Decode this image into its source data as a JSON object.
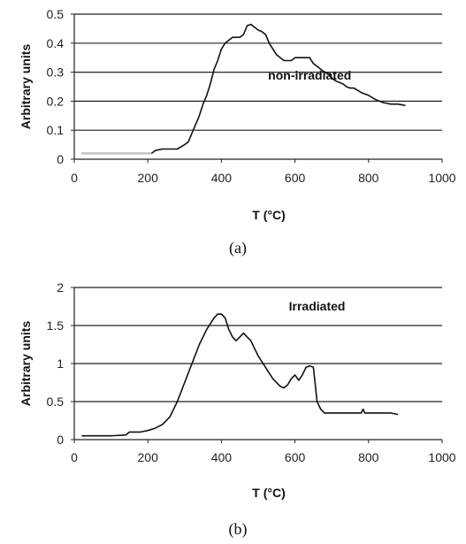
{
  "chart_data": [
    {
      "type": "line",
      "caption": "(a)",
      "xlabel": "T (°C)",
      "ylabel": "Arbitrary units",
      "xlim": [
        0,
        1000
      ],
      "ylim": [
        0,
        0.5
      ],
      "xticks": [
        0,
        200,
        400,
        600,
        800,
        1000
      ],
      "yticks": [
        0,
        0.1,
        0.2,
        0.3,
        0.4,
        0.5
      ],
      "ytick_labels": [
        "0",
        "0.1",
        "0.2",
        "0.3",
        "0.4",
        "0.5"
      ],
      "grid": "horizontal",
      "annotations": [
        {
          "text": "non-irradiated",
          "x": 640,
          "y": 0.275
        }
      ],
      "series": [
        {
          "color": "#111111",
          "x": [
            20,
            60,
            100,
            140,
            180,
            210,
            220,
            240,
            260,
            280,
            300,
            310,
            320,
            330,
            340,
            350,
            360,
            370,
            380,
            390,
            400,
            410,
            420,
            430,
            440,
            450,
            460,
            470,
            480,
            490,
            500,
            510,
            520,
            530,
            540,
            550,
            560,
            570,
            580,
            590,
            600,
            610,
            620,
            630,
            640,
            650,
            660,
            670,
            680,
            690,
            700,
            710,
            720,
            730,
            740,
            750,
            760,
            780,
            800,
            820,
            840,
            860,
            880,
            900
          ],
          "y": [
            0.02,
            0.02,
            0.02,
            0.02,
            0.02,
            0.02,
            0.03,
            0.035,
            0.035,
            0.035,
            0.05,
            0.06,
            0.09,
            0.12,
            0.15,
            0.19,
            0.22,
            0.26,
            0.31,
            0.34,
            0.38,
            0.4,
            0.41,
            0.42,
            0.42,
            0.42,
            0.43,
            0.46,
            0.465,
            0.455,
            0.445,
            0.44,
            0.43,
            0.4,
            0.38,
            0.36,
            0.35,
            0.34,
            0.34,
            0.34,
            0.35,
            0.35,
            0.35,
            0.35,
            0.35,
            0.33,
            0.32,
            0.31,
            0.3,
            0.295,
            0.28,
            0.27,
            0.265,
            0.26,
            0.25,
            0.245,
            0.245,
            0.23,
            0.22,
            0.205,
            0.195,
            0.19,
            0.19,
            0.185
          ]
        }
      ]
    },
    {
      "type": "line",
      "caption": "(b)",
      "xlabel": "T (°C)",
      "ylabel": "Arbitrary units",
      "xlim": [
        0,
        1000
      ],
      "ylim": [
        0,
        2
      ],
      "xticks": [
        0,
        200,
        400,
        600,
        800,
        1000
      ],
      "yticks": [
        0,
        0.5,
        1,
        1.5,
        2
      ],
      "ytick_labels": [
        "0",
        "0.5",
        "1",
        "1.5",
        "2"
      ],
      "grid": "horizontal",
      "annotations": [
        {
          "text": "Irradiated",
          "x": 660,
          "y": 1.7
        }
      ],
      "series": [
        {
          "color": "#111111",
          "x": [
            20,
            60,
            100,
            140,
            150,
            180,
            200,
            220,
            240,
            260,
            280,
            300,
            320,
            340,
            360,
            380,
            390,
            400,
            410,
            420,
            430,
            440,
            450,
            460,
            470,
            480,
            490,
            500,
            520,
            540,
            560,
            570,
            580,
            590,
            600,
            610,
            620,
            630,
            640,
            650,
            660,
            670,
            680,
            700,
            720,
            740,
            760,
            780,
            785,
            790,
            800,
            820,
            840,
            860,
            880
          ],
          "y": [
            0.05,
            0.05,
            0.05,
            0.06,
            0.1,
            0.1,
            0.12,
            0.15,
            0.2,
            0.3,
            0.5,
            0.75,
            1.0,
            1.25,
            1.45,
            1.6,
            1.65,
            1.65,
            1.6,
            1.45,
            1.35,
            1.3,
            1.35,
            1.4,
            1.35,
            1.3,
            1.2,
            1.1,
            0.95,
            0.8,
            0.7,
            0.68,
            0.72,
            0.8,
            0.85,
            0.78,
            0.85,
            0.95,
            0.97,
            0.95,
            0.5,
            0.4,
            0.35,
            0.35,
            0.35,
            0.35,
            0.35,
            0.35,
            0.4,
            0.35,
            0.35,
            0.35,
            0.35,
            0.35,
            0.33
          ]
        }
      ]
    }
  ]
}
